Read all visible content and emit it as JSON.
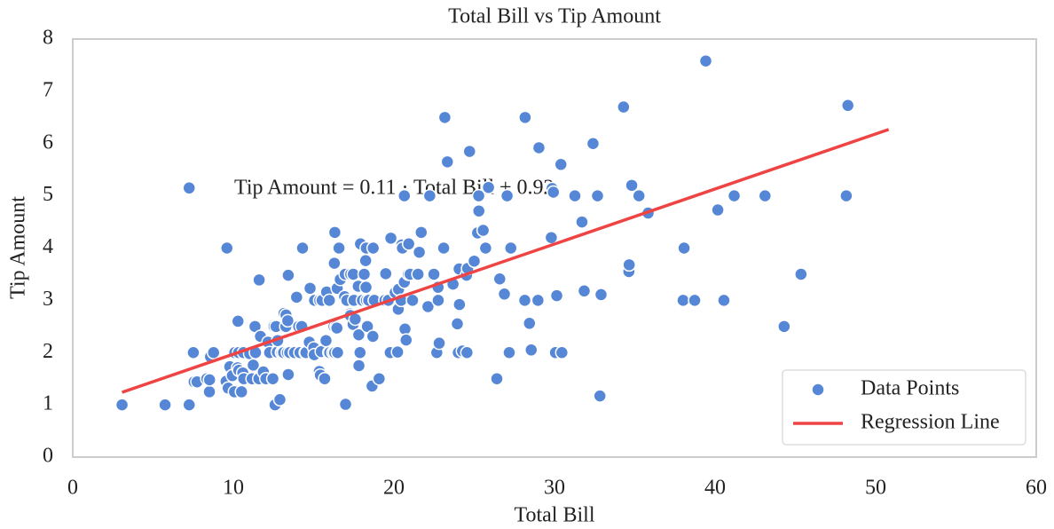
{
  "chart_data": {
    "type": "scatter",
    "title": "Total Bill vs Tip Amount",
    "xlabel": "Total Bill",
    "ylabel": "Tip Amount",
    "annotation": "Tip Amount = 0.11 · Total Bill + 0.92",
    "xlim": [
      0,
      60
    ],
    "xticks": [
      0,
      10,
      20,
      30,
      40,
      50,
      60
    ],
    "ylim": [
      0,
      8
    ],
    "yticks": [
      0,
      1,
      2,
      3,
      4,
      5,
      6,
      7,
      8
    ],
    "grid": false,
    "legend": "lower right",
    "series": [
      {
        "name": "Data Points",
        "type": "scatter",
        "color": "#5587d6",
        "x": [
          3.07,
          5.75,
          7.25,
          7.25,
          7.51,
          7.56,
          7.74,
          8.35,
          8.51,
          8.52,
          8.58,
          8.77,
          9.55,
          9.6,
          9.68,
          9.78,
          9.94,
          10.07,
          10.09,
          10.27,
          10.29,
          10.33,
          10.34,
          10.51,
          10.59,
          10.63,
          10.65,
          11.02,
          11.17,
          11.24,
          11.35,
          11.38,
          11.59,
          11.61,
          11.69,
          11.87,
          12.03,
          12.16,
          12.26,
          12.46,
          12.48,
          12.54,
          12.6,
          12.66,
          12.74,
          12.76,
          12.9,
          13.0,
          13.03,
          13.13,
          13.16,
          13.27,
          13.28,
          13.37,
          13.39,
          13.42,
          13.42,
          13.51,
          13.81,
          13.94,
          14.07,
          14.15,
          14.26,
          14.31,
          14.48,
          14.52,
          14.73,
          14.78,
          15.01,
          15.04,
          15.06,
          15.36,
          15.38,
          15.42,
          15.48,
          15.53,
          15.69,
          15.77,
          15.81,
          15.95,
          15.98,
          16.0,
          16.21,
          16.27,
          16.29,
          16.31,
          16.32,
          16.4,
          16.45,
          16.47,
          16.49,
          16.58,
          16.66,
          16.93,
          16.97,
          16.99,
          17.07,
          17.26,
          17.29,
          17.31,
          17.46,
          17.47,
          17.51,
          17.59,
          17.78,
          17.81,
          17.82,
          17.89,
          17.92,
          18.04,
          18.15,
          18.24,
          18.26,
          18.28,
          18.29,
          18.35,
          18.43,
          18.64,
          18.69,
          18.71,
          18.78,
          19.08,
          19.44,
          19.49,
          19.65,
          19.77,
          19.81,
          20.08,
          20.23,
          20.27,
          20.29,
          20.45,
          20.49,
          20.53,
          20.65,
          20.65,
          20.69,
          20.76,
          20.9,
          20.92,
          21.01,
          21.16,
          21.5,
          21.58,
          21.7,
          22.12,
          22.23,
          22.42,
          22.49,
          22.67,
          22.75,
          22.76,
          22.82,
          23.1,
          23.17,
          23.33,
          23.68,
          23.95,
          24.01,
          24.06,
          24.08,
          24.27,
          24.52,
          24.55,
          24.59,
          24.71,
          25.0,
          25.21,
          25.28,
          25.29,
          25.56,
          25.71,
          25.89,
          26.41,
          26.59,
          26.86,
          26.88,
          27.05,
          27.18,
          27.2,
          27.28,
          28.15,
          28.17,
          28.44,
          28.55,
          28.97,
          29.03,
          29.8,
          29.85,
          29.93,
          30.06,
          30.14,
          30.4,
          30.46,
          31.27,
          31.71,
          31.85,
          32.4,
          32.68,
          32.83,
          32.9,
          34.3,
          34.63,
          34.65,
          34.81,
          35.26,
          35.83,
          38.01,
          38.07,
          38.73,
          39.42,
          40.17,
          40.55,
          41.19,
          43.11,
          44.3,
          45.35,
          48.17,
          48.27
        ],
        "y": [
          1.0,
          1.0,
          1.0,
          5.15,
          2.0,
          1.44,
          1.44,
          1.5,
          1.25,
          1.48,
          1.92,
          2.0,
          1.45,
          4.0,
          1.32,
          1.73,
          1.56,
          1.25,
          2.0,
          1.71,
          2.6,
          2.0,
          1.66,
          1.25,
          1.61,
          2.0,
          1.5,
          1.98,
          1.5,
          1.76,
          2.5,
          2.0,
          1.5,
          3.39,
          2.31,
          1.63,
          1.5,
          2.2,
          2.0,
          1.5,
          2.52,
          2.5,
          1.0,
          2.5,
          2.01,
          2.23,
          1.1,
          2.0,
          2.0,
          2.0,
          2.75,
          2.5,
          2.72,
          2.0,
          2.61,
          1.58,
          3.48,
          2.0,
          2.0,
          3.06,
          2.5,
          2.0,
          2.5,
          4.0,
          2.0,
          2.0,
          2.2,
          3.23,
          2.09,
          1.96,
          3.0,
          1.64,
          3.0,
          1.57,
          2.02,
          3.0,
          1.5,
          2.23,
          3.16,
          2.0,
          3.0,
          2.0,
          2.0,
          2.5,
          3.71,
          2.0,
          4.3,
          2.5,
          2.47,
          3.23,
          2.0,
          4.0,
          3.4,
          3.07,
          3.5,
          1.01,
          3.0,
          2.74,
          2.71,
          3.5,
          2.54,
          3.5,
          3.0,
          2.64,
          3.27,
          2.34,
          1.75,
          2.0,
          4.08,
          3.0,
          3.5,
          3.76,
          3.25,
          4.0,
          3.0,
          2.5,
          3.0,
          1.36,
          2.31,
          4.0,
          3.0,
          1.5,
          3.0,
          3.51,
          3.0,
          2.0,
          4.19,
          3.15,
          2.01,
          2.83,
          3.21,
          3.0,
          4.06,
          4.0,
          3.35,
          5.0,
          2.45,
          2.24,
          3.5,
          4.08,
          3.5,
          3.0,
          3.5,
          3.92,
          4.3,
          2.88,
          5.0,
          3.48,
          3.5,
          2.0,
          3.25,
          3.0,
          2.18,
          4.0,
          6.5,
          5.65,
          3.31,
          2.55,
          2.0,
          3.6,
          2.92,
          2.03,
          3.48,
          2.0,
          3.61,
          5.85,
          3.75,
          4.29,
          5.0,
          4.71,
          4.34,
          4.0,
          5.16,
          1.5,
          3.41,
          3.14,
          3.12,
          5.0,
          2.0,
          4.0,
          4.0,
          3.0,
          6.5,
          2.56,
          2.05,
          3.0,
          5.92,
          4.2,
          5.14,
          5.07,
          2.0,
          3.09,
          5.6,
          2.0,
          5.0,
          4.5,
          3.18,
          6.0,
          5.0,
          1.17,
          3.11,
          6.7,
          3.55,
          3.68,
          5.2,
          5.0,
          4.67,
          3.0,
          4.0,
          3.0,
          7.58,
          4.73,
          3.0,
          5.0,
          5.0,
          2.5,
          3.5,
          5.0,
          6.73
        ]
      },
      {
        "name": "Regression Line",
        "type": "line",
        "color": "#ef4444",
        "x": [
          3.07,
          50.81
        ],
        "y": [
          1.24,
          6.27
        ]
      }
    ]
  }
}
